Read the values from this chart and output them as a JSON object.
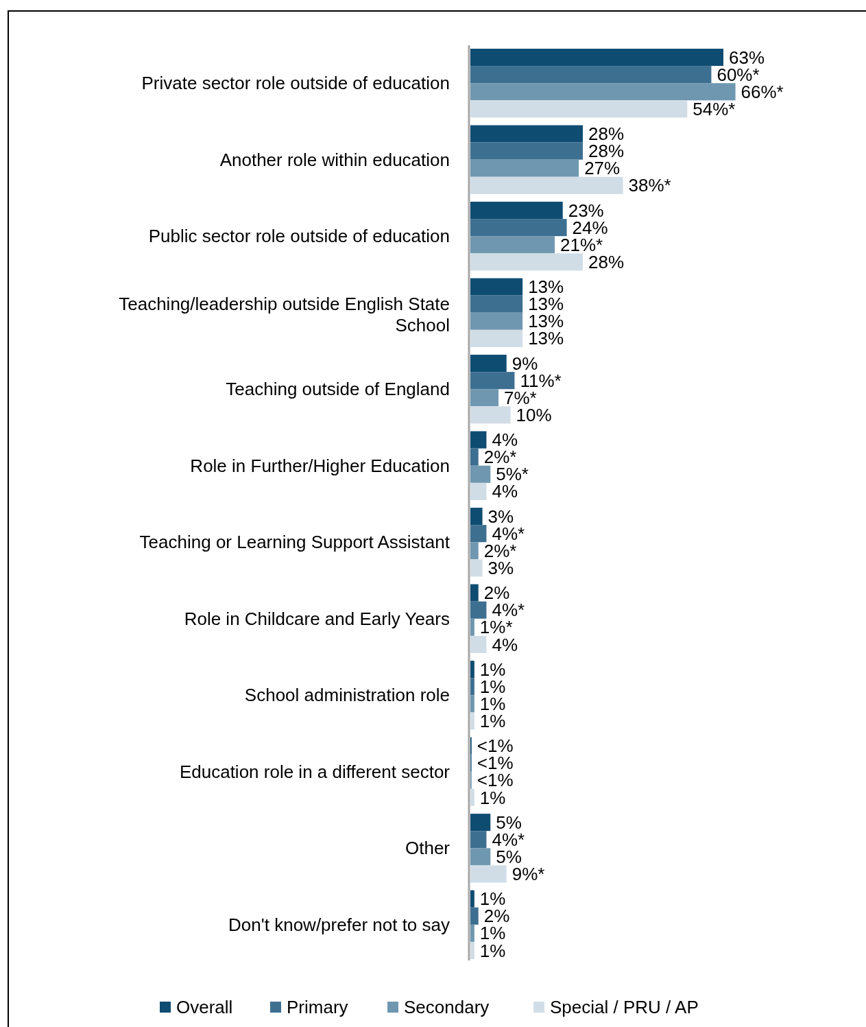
{
  "chart_data": {
    "type": "bar",
    "orientation": "horizontal",
    "legend": "bottom",
    "categories": [
      "Private sector role outside of education",
      "Another role within education",
      "Public sector role outside of education",
      "Teaching/leadership outside English State School",
      "Teaching outside of England",
      "Role in Further/Higher Education",
      "Teaching or Learning Support Assistant",
      "Role in Childcare and Early Years",
      "School administration role",
      "Education role in a different sector",
      "Other",
      "Don't know/prefer not to say"
    ],
    "series": [
      {
        "name": "Overall",
        "color": "#0f4c72",
        "values": [
          63,
          28,
          23,
          13,
          9,
          4,
          3,
          2,
          1,
          0.3,
          5,
          1
        ],
        "value_labels": [
          "63%",
          "28%",
          "23%",
          "13%",
          "9%",
          "4%",
          "3%",
          "2%",
          "1%",
          "<1%",
          "5%",
          "1%"
        ]
      },
      {
        "name": "Primary",
        "color": "#3d6f91",
        "values": [
          60,
          28,
          24,
          13,
          11,
          2,
          4,
          4,
          1,
          0.3,
          4,
          2
        ],
        "value_labels": [
          "60%*",
          "28%",
          "24%",
          "13%",
          "11%*",
          "2%*",
          "4%*",
          "4%*",
          "1%",
          "<1%",
          "4%*",
          "2%"
        ]
      },
      {
        "name": "Secondary",
        "color": "#7097b0",
        "values": [
          66,
          27,
          21,
          13,
          7,
          5,
          2,
          1,
          1,
          0.3,
          5,
          1
        ],
        "value_labels": [
          "66%*",
          "27%",
          "21%*",
          "13%",
          "7%*",
          "5%*",
          "2%*",
          "1%*",
          "1%",
          "<1%",
          "5%",
          "1%"
        ]
      },
      {
        "name": "Special / PRU / AP",
        "color": "#d1dde6",
        "values": [
          54,
          38,
          28,
          13,
          10,
          4,
          3,
          4,
          1,
          1,
          9,
          1
        ],
        "value_labels": [
          "54%*",
          "38%*",
          "28%",
          "13%",
          "10%",
          "4%",
          "3%",
          "4%",
          "1%",
          "1%",
          "9%*",
          "1%"
        ]
      }
    ]
  }
}
